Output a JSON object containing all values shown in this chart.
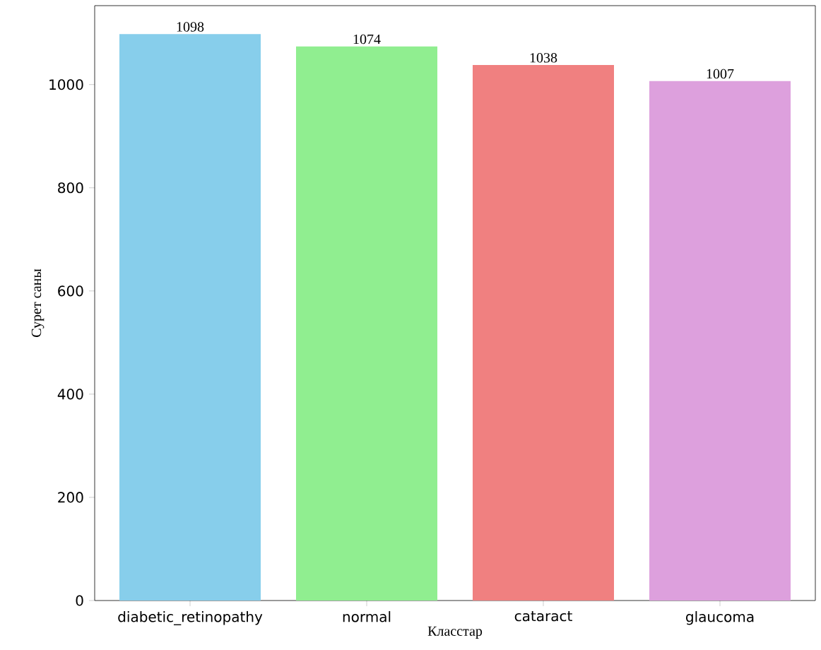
{
  "chart_data": {
    "type": "bar",
    "xlabel": "Класстар",
    "ylabel": "Сурет саны",
    "categories": [
      "diabetic_retinopathy",
      "normal",
      "cataract",
      "glaucoma"
    ],
    "values": [
      1098,
      1074,
      1038,
      1007
    ],
    "colors": [
      "#87ceeb",
      "#90ee90",
      "#f08080",
      "#dda0dd"
    ],
    "ylim": [
      0,
      1153
    ],
    "yticks": [
      0,
      200,
      400,
      600,
      800,
      1000
    ],
    "grid": false,
    "data_labels": true
  }
}
